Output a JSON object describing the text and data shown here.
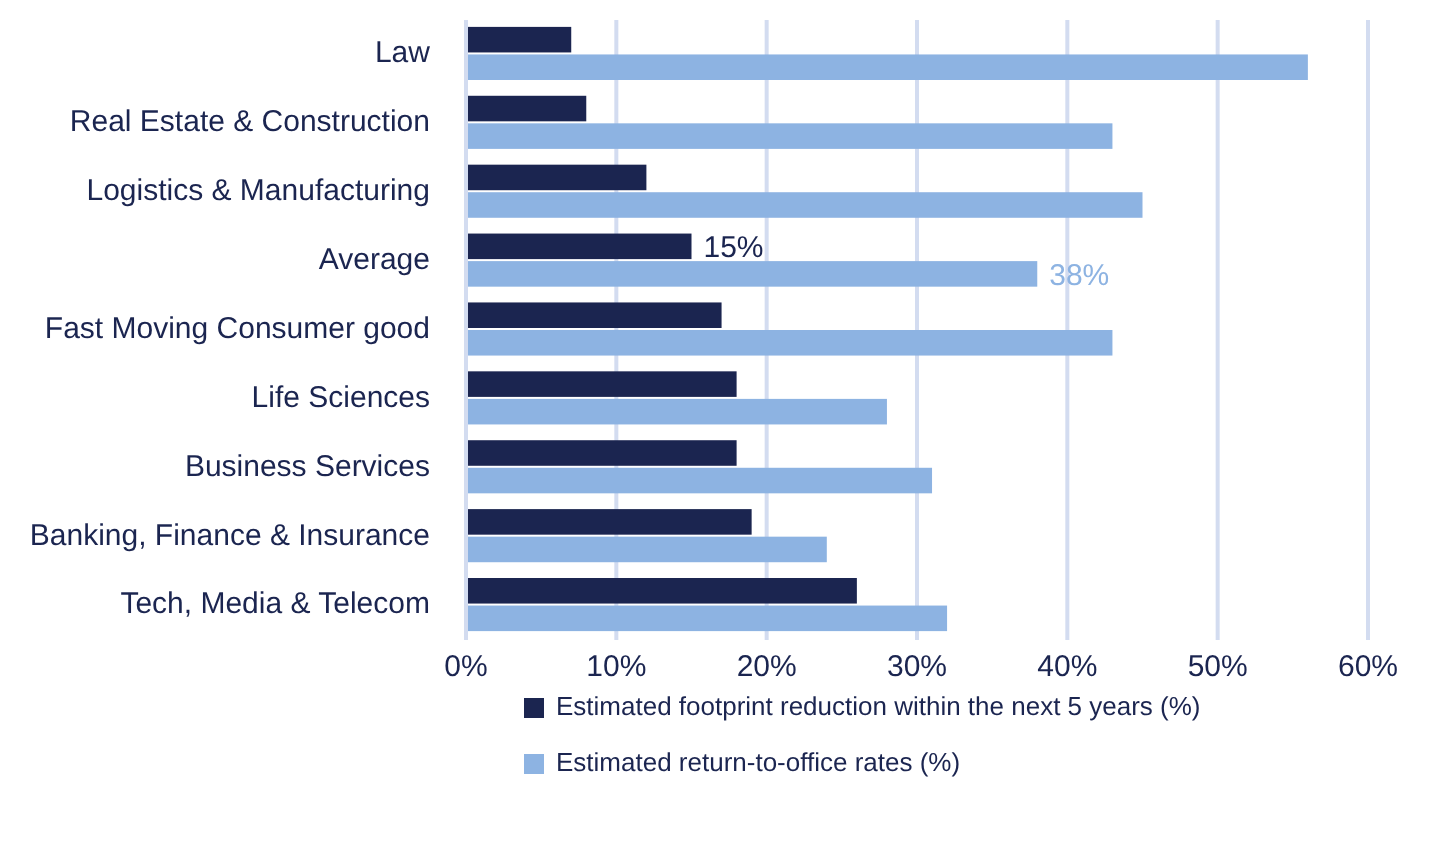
{
  "chart_data": {
    "type": "bar",
    "orientation": "horizontal",
    "categories": [
      "Law",
      "Real Estate & Construction ",
      "Logistics & Manufacturing",
      "Average",
      "Fast Moving Consumer good",
      "Life Sciences",
      "Business Services",
      "Banking, Finance & Insurance",
      "Tech, Media & Telecom"
    ],
    "series": [
      {
        "name": "Estimated footprint reduction within the next 5 years (%)",
        "color": "#1b2550",
        "values": [
          7,
          8,
          12,
          15,
          17,
          18,
          18,
          19,
          26
        ],
        "value_labels": [
          null,
          null,
          null,
          "15%",
          null,
          null,
          null,
          null,
          null
        ]
      },
      {
        "name": "Estimated return-to-office rates (%)",
        "color": "#8db3e2",
        "values": [
          56,
          43,
          45,
          38,
          43,
          28,
          31,
          24,
          32
        ],
        "value_labels": [
          null,
          null,
          null,
          "38%",
          null,
          null,
          null,
          null,
          null
        ]
      }
    ],
    "xlim": [
      0,
      60
    ],
    "xticks": [
      {
        "value": 0,
        "label": "0%"
      },
      {
        "value": 10,
        "label": "10%"
      },
      {
        "value": 20,
        "label": "20%"
      },
      {
        "value": 30,
        "label": "30%"
      },
      {
        "value": 40,
        "label": "40%"
      },
      {
        "value": 50,
        "label": "50%"
      },
      {
        "value": 60,
        "label": "60%"
      }
    ],
    "grid": "x",
    "legend": "bottom"
  }
}
